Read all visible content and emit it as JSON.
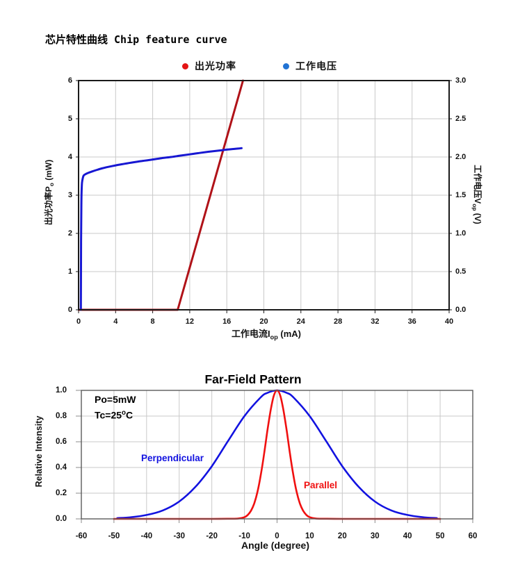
{
  "title": "芯片特性曲线 Chip feature curve",
  "chart1": {
    "legend": [
      {
        "label": "出光功率",
        "color": "#e41414"
      },
      {
        "label": "工作电压",
        "color": "#2173d4"
      }
    ],
    "ylabel_left": {
      "pre": "出光功率P",
      "sub": "o",
      "post": " (mW)"
    },
    "ylabel_right": {
      "pre": "工作电压V",
      "sub": "op",
      "post": " (V)"
    },
    "xlabel": {
      "pre": "工作电流I",
      "sub": "op",
      "post": " (mA)"
    }
  },
  "chart2": {
    "title": "Far-Field Pattern",
    "ylabel": "Relative Intensity",
    "xlabel": "Angle (degree)",
    "annotation": {
      "line1": "Po=5mW",
      "line2_pre": "Tc=25",
      "line2_sup": "o",
      "line2_post": "C"
    },
    "curve_labels": {
      "perpendicular": "Perpendicular",
      "parallel": "Parallel"
    }
  },
  "grid_color": "#c9c9c9",
  "frame_color_chart1": "#1a1a1a",
  "frame_color_chart2": "#5a5a5a",
  "chart_data": [
    {
      "type": "line",
      "title": "芯片特性曲线 Chip feature curve",
      "xlabel": "工作电流Iop (mA)",
      "ylabel_left": "出光功率Po (mW)",
      "ylabel_right": "工作电压Vop (V)",
      "xlim": [
        0,
        40
      ],
      "ylim_left": [
        0,
        6
      ],
      "ylim_right": [
        0,
        3
      ],
      "xticks": [
        0,
        4,
        8,
        12,
        16,
        20,
        24,
        28,
        32,
        36,
        40
      ],
      "yticks_left": [
        0,
        1,
        2,
        3,
        4,
        5,
        6
      ],
      "yticks_right": [
        "0.0",
        "0.5",
        "1.0",
        "1.5",
        "2.0",
        "2.5",
        "3.0"
      ],
      "grid": true,
      "legend_position": "top",
      "series": [
        {
          "name": "出光功率",
          "axis": "left",
          "unit": "mW",
          "color": "#b01218",
          "width": 3,
          "smooth": false,
          "points": [
            [
              0,
              0
            ],
            [
              10.7,
              0
            ],
            [
              17.75,
              6
            ]
          ]
        },
        {
          "name": "工作电压",
          "axis": "right",
          "unit": "V",
          "color": "#1717d2",
          "width": 3,
          "smooth": true,
          "points": [
            [
              0.25,
              0
            ],
            [
              0.27,
              0.9
            ],
            [
              0.3,
              1.35
            ],
            [
              0.33,
              1.56
            ],
            [
              0.37,
              1.66
            ],
            [
              0.45,
              1.72
            ],
            [
              0.55,
              1.757
            ],
            [
              0.7,
              1.772
            ],
            [
              1,
              1.79
            ],
            [
              1.5,
              1.812
            ],
            [
              2,
              1.832
            ],
            [
              2.5,
              1.85
            ],
            [
              3,
              1.865
            ],
            [
              4,
              1.89
            ],
            [
              5,
              1.912
            ],
            [
              6,
              1.932
            ],
            [
              7,
              1.95
            ],
            [
              8,
              1.967
            ],
            [
              9,
              1.985
            ],
            [
              10,
              2.0
            ],
            [
              11,
              2.018
            ],
            [
              12,
              2.035
            ],
            [
              13,
              2.052
            ],
            [
              14,
              2.068
            ],
            [
              15,
              2.082
            ],
            [
              16,
              2.096
            ],
            [
              17,
              2.108
            ],
            [
              17.6,
              2.115
            ]
          ]
        }
      ]
    },
    {
      "type": "line",
      "title": "Far-Field Pattern",
      "xlabel": "Angle (degree)",
      "ylabel": "Relative Intensity",
      "xlim": [
        -60,
        60
      ],
      "ylim": [
        0,
        1
      ],
      "xticks": [
        -60,
        -50,
        -40,
        -30,
        -20,
        -10,
        0,
        10,
        20,
        30,
        40,
        50,
        60
      ],
      "yticks": [
        "0.0",
        "0.2",
        "0.4",
        "0.6",
        "0.8",
        "1.0"
      ],
      "grid": true,
      "annotations": [
        "Po=5mW",
        "Tc=25°C"
      ],
      "series": [
        {
          "name": "Perpendicular",
          "color": "#1212e0",
          "width": 2.6,
          "smooth": true,
          "points": [
            [
              -49,
              0.006
            ],
            [
              -45,
              0.012
            ],
            [
              -40,
              0.03
            ],
            [
              -35,
              0.066
            ],
            [
              -30,
              0.135
            ],
            [
              -25,
              0.25
            ],
            [
              -20,
              0.41
            ],
            [
              -15,
              0.607
            ],
            [
              -10,
              0.8
            ],
            [
              -5,
              0.946
            ],
            [
              -3,
              0.98
            ],
            [
              0,
              1
            ],
            [
              3,
              0.98
            ],
            [
              5,
              0.946
            ],
            [
              10,
              0.8
            ],
            [
              15,
              0.607
            ],
            [
              20,
              0.41
            ],
            [
              25,
              0.25
            ],
            [
              30,
              0.135
            ],
            [
              35,
              0.066
            ],
            [
              40,
              0.03
            ],
            [
              45,
              0.012
            ],
            [
              49,
              0.006
            ]
          ]
        },
        {
          "name": "Parallel",
          "color": "#f01010",
          "width": 2.6,
          "smooth": true,
          "points": [
            [
              -50,
              0
            ],
            [
              -30,
              0
            ],
            [
              -20,
              0
            ],
            [
              -15,
              0.001
            ],
            [
              -12,
              0.002
            ],
            [
              -10,
              0.013
            ],
            [
              -9,
              0.03
            ],
            [
              -8,
              0.063
            ],
            [
              -7,
              0.12
            ],
            [
              -6,
              0.21
            ],
            [
              -5,
              0.34
            ],
            [
              -4,
              0.5
            ],
            [
              -3,
              0.68
            ],
            [
              -2,
              0.84
            ],
            [
              -1,
              0.958
            ],
            [
              0,
              1
            ],
            [
              1,
              0.958
            ],
            [
              2,
              0.84
            ],
            [
              3,
              0.68
            ],
            [
              4,
              0.5
            ],
            [
              5,
              0.34
            ],
            [
              6,
              0.21
            ],
            [
              7,
              0.12
            ],
            [
              8,
              0.063
            ],
            [
              9,
              0.03
            ],
            [
              10,
              0.013
            ],
            [
              12,
              0.002
            ],
            [
              15,
              0.001
            ],
            [
              20,
              0
            ],
            [
              30,
              0
            ],
            [
              50,
              0
            ]
          ]
        }
      ]
    }
  ]
}
